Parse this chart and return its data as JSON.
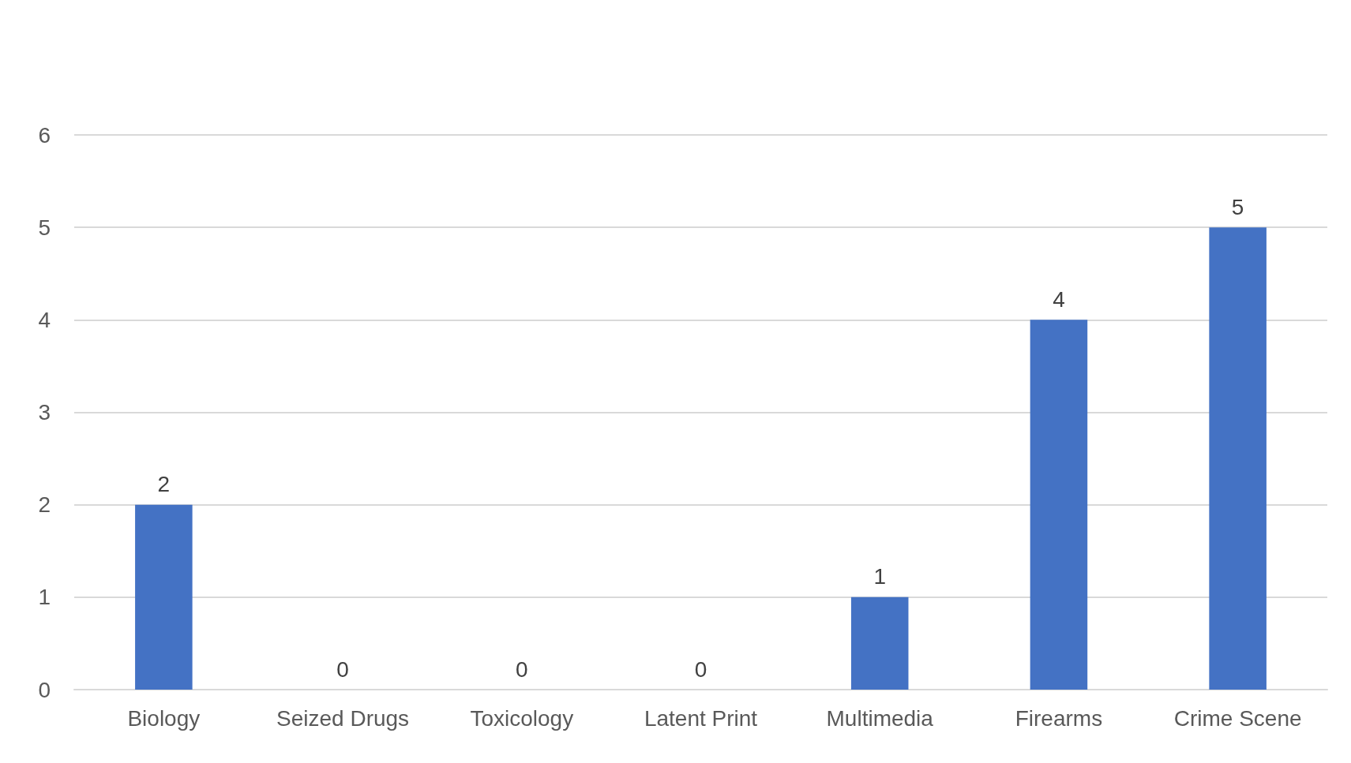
{
  "chart_data": {
    "type": "bar",
    "categories": [
      "Biology",
      "Seized Drugs",
      "Toxicology",
      "Latent Print",
      "Multimedia",
      "Firearms",
      "Crime Scene"
    ],
    "values": [
      2,
      0,
      0,
      0,
      1,
      4,
      5
    ],
    "color": "#4472c4",
    "ylim": [
      0,
      6
    ],
    "yticks": [
      0,
      1,
      2,
      3,
      4,
      5,
      6
    ],
    "grid": "y",
    "data_labels": true
  }
}
